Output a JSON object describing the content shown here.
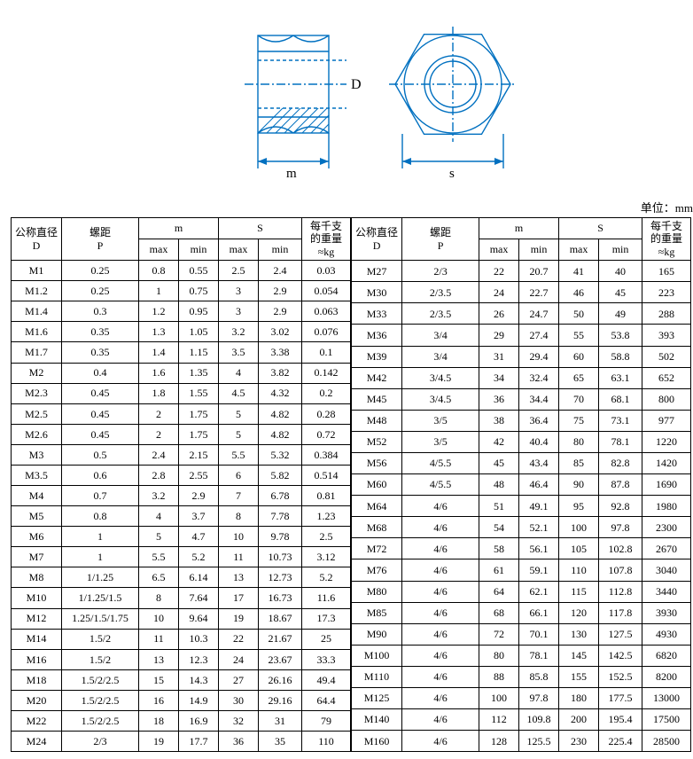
{
  "unit_label": "单位：mm",
  "header": {
    "D_line1": "公称直径",
    "D_line2": "D",
    "P_line1": "螺距",
    "P_line2": "P",
    "m": "m",
    "S": "S",
    "wt_line1": "每千支",
    "wt_line2": "的重量",
    "wt_line3": "≈kg",
    "max": "max",
    "min": "min"
  },
  "diagram": {
    "D_label": "D",
    "m_label": "m",
    "s_label": "s",
    "stroke": "#0070c0",
    "hatch": "#0070c0"
  },
  "left_rows": [
    [
      "M1",
      "0.25",
      "0.8",
      "0.55",
      "2.5",
      "2.4",
      "0.03"
    ],
    [
      "M1.2",
      "0.25",
      "1",
      "0.75",
      "3",
      "2.9",
      "0.054"
    ],
    [
      "M1.4",
      "0.3",
      "1.2",
      "0.95",
      "3",
      "2.9",
      "0.063"
    ],
    [
      "M1.6",
      "0.35",
      "1.3",
      "1.05",
      "3.2",
      "3.02",
      "0.076"
    ],
    [
      "M1.7",
      "0.35",
      "1.4",
      "1.15",
      "3.5",
      "3.38",
      "0.1"
    ],
    [
      "M2",
      "0.4",
      "1.6",
      "1.35",
      "4",
      "3.82",
      "0.142"
    ],
    [
      "M2.3",
      "0.45",
      "1.8",
      "1.55",
      "4.5",
      "4.32",
      "0.2"
    ],
    [
      "M2.5",
      "0.45",
      "2",
      "1.75",
      "5",
      "4.82",
      "0.28"
    ],
    [
      "M2.6",
      "0.45",
      "2",
      "1.75",
      "5",
      "4.82",
      "0.72"
    ],
    [
      "M3",
      "0.5",
      "2.4",
      "2.15",
      "5.5",
      "5.32",
      "0.384"
    ],
    [
      "M3.5",
      "0.6",
      "2.8",
      "2.55",
      "6",
      "5.82",
      "0.514"
    ],
    [
      "M4",
      "0.7",
      "3.2",
      "2.9",
      "7",
      "6.78",
      "0.81"
    ],
    [
      "M5",
      "0.8",
      "4",
      "3.7",
      "8",
      "7.78",
      "1.23"
    ],
    [
      "M6",
      "1",
      "5",
      "4.7",
      "10",
      "9.78",
      "2.5"
    ],
    [
      "M7",
      "1",
      "5.5",
      "5.2",
      "11",
      "10.73",
      "3.12"
    ],
    [
      "M8",
      "1/1.25",
      "6.5",
      "6.14",
      "13",
      "12.73",
      "5.2"
    ],
    [
      "M10",
      "1/1.25/1.5",
      "8",
      "7.64",
      "17",
      "16.73",
      "11.6"
    ],
    [
      "M12",
      "1.25/1.5/1.75",
      "10",
      "9.64",
      "19",
      "18.67",
      "17.3"
    ],
    [
      "M14",
      "1.5/2",
      "11",
      "10.3",
      "22",
      "21.67",
      "25"
    ],
    [
      "M16",
      "1.5/2",
      "13",
      "12.3",
      "24",
      "23.67",
      "33.3"
    ],
    [
      "M18",
      "1.5/2/2.5",
      "15",
      "14.3",
      "27",
      "26.16",
      "49.4"
    ],
    [
      "M20",
      "1.5/2/2.5",
      "16",
      "14.9",
      "30",
      "29.16",
      "64.4"
    ],
    [
      "M22",
      "1.5/2/2.5",
      "18",
      "16.9",
      "32",
      "31",
      "79"
    ],
    [
      "M24",
      "2/3",
      "19",
      "17.7",
      "36",
      "35",
      "110"
    ]
  ],
  "right_rows": [
    [
      "M27",
      "2/3",
      "22",
      "20.7",
      "41",
      "40",
      "165"
    ],
    [
      "M30",
      "2/3.5",
      "24",
      "22.7",
      "46",
      "45",
      "223"
    ],
    [
      "M33",
      "2/3.5",
      "26",
      "24.7",
      "50",
      "49",
      "288"
    ],
    [
      "M36",
      "3/4",
      "29",
      "27.4",
      "55",
      "53.8",
      "393"
    ],
    [
      "M39",
      "3/4",
      "31",
      "29.4",
      "60",
      "58.8",
      "502"
    ],
    [
      "M42",
      "3/4.5",
      "34",
      "32.4",
      "65",
      "63.1",
      "652"
    ],
    [
      "M45",
      "3/4.5",
      "36",
      "34.4",
      "70",
      "68.1",
      "800"
    ],
    [
      "M48",
      "3/5",
      "38",
      "36.4",
      "75",
      "73.1",
      "977"
    ],
    [
      "M52",
      "3/5",
      "42",
      "40.4",
      "80",
      "78.1",
      "1220"
    ],
    [
      "M56",
      "4/5.5",
      "45",
      "43.4",
      "85",
      "82.8",
      "1420"
    ],
    [
      "M60",
      "4/5.5",
      "48",
      "46.4",
      "90",
      "87.8",
      "1690"
    ],
    [
      "M64",
      "4/6",
      "51",
      "49.1",
      "95",
      "92.8",
      "1980"
    ],
    [
      "M68",
      "4/6",
      "54",
      "52.1",
      "100",
      "97.8",
      "2300"
    ],
    [
      "M72",
      "4/6",
      "58",
      "56.1",
      "105",
      "102.8",
      "2670"
    ],
    [
      "M76",
      "4/6",
      "61",
      "59.1",
      "110",
      "107.8",
      "3040"
    ],
    [
      "M80",
      "4/6",
      "64",
      "62.1",
      "115",
      "112.8",
      "3440"
    ],
    [
      "M85",
      "4/6",
      "68",
      "66.1",
      "120",
      "117.8",
      "3930"
    ],
    [
      "M90",
      "4/6",
      "72",
      "70.1",
      "130",
      "127.5",
      "4930"
    ],
    [
      "M100",
      "4/6",
      "80",
      "78.1",
      "145",
      "142.5",
      "6820"
    ],
    [
      "M110",
      "4/6",
      "88",
      "85.8",
      "155",
      "152.5",
      "8200"
    ],
    [
      "M125",
      "4/6",
      "100",
      "97.8",
      "180",
      "177.5",
      "13000"
    ],
    [
      "M140",
      "4/6",
      "112",
      "109.8",
      "200",
      "195.4",
      "17500"
    ],
    [
      "M160",
      "4/6",
      "128",
      "125.5",
      "230",
      "225.4",
      "28500"
    ]
  ]
}
